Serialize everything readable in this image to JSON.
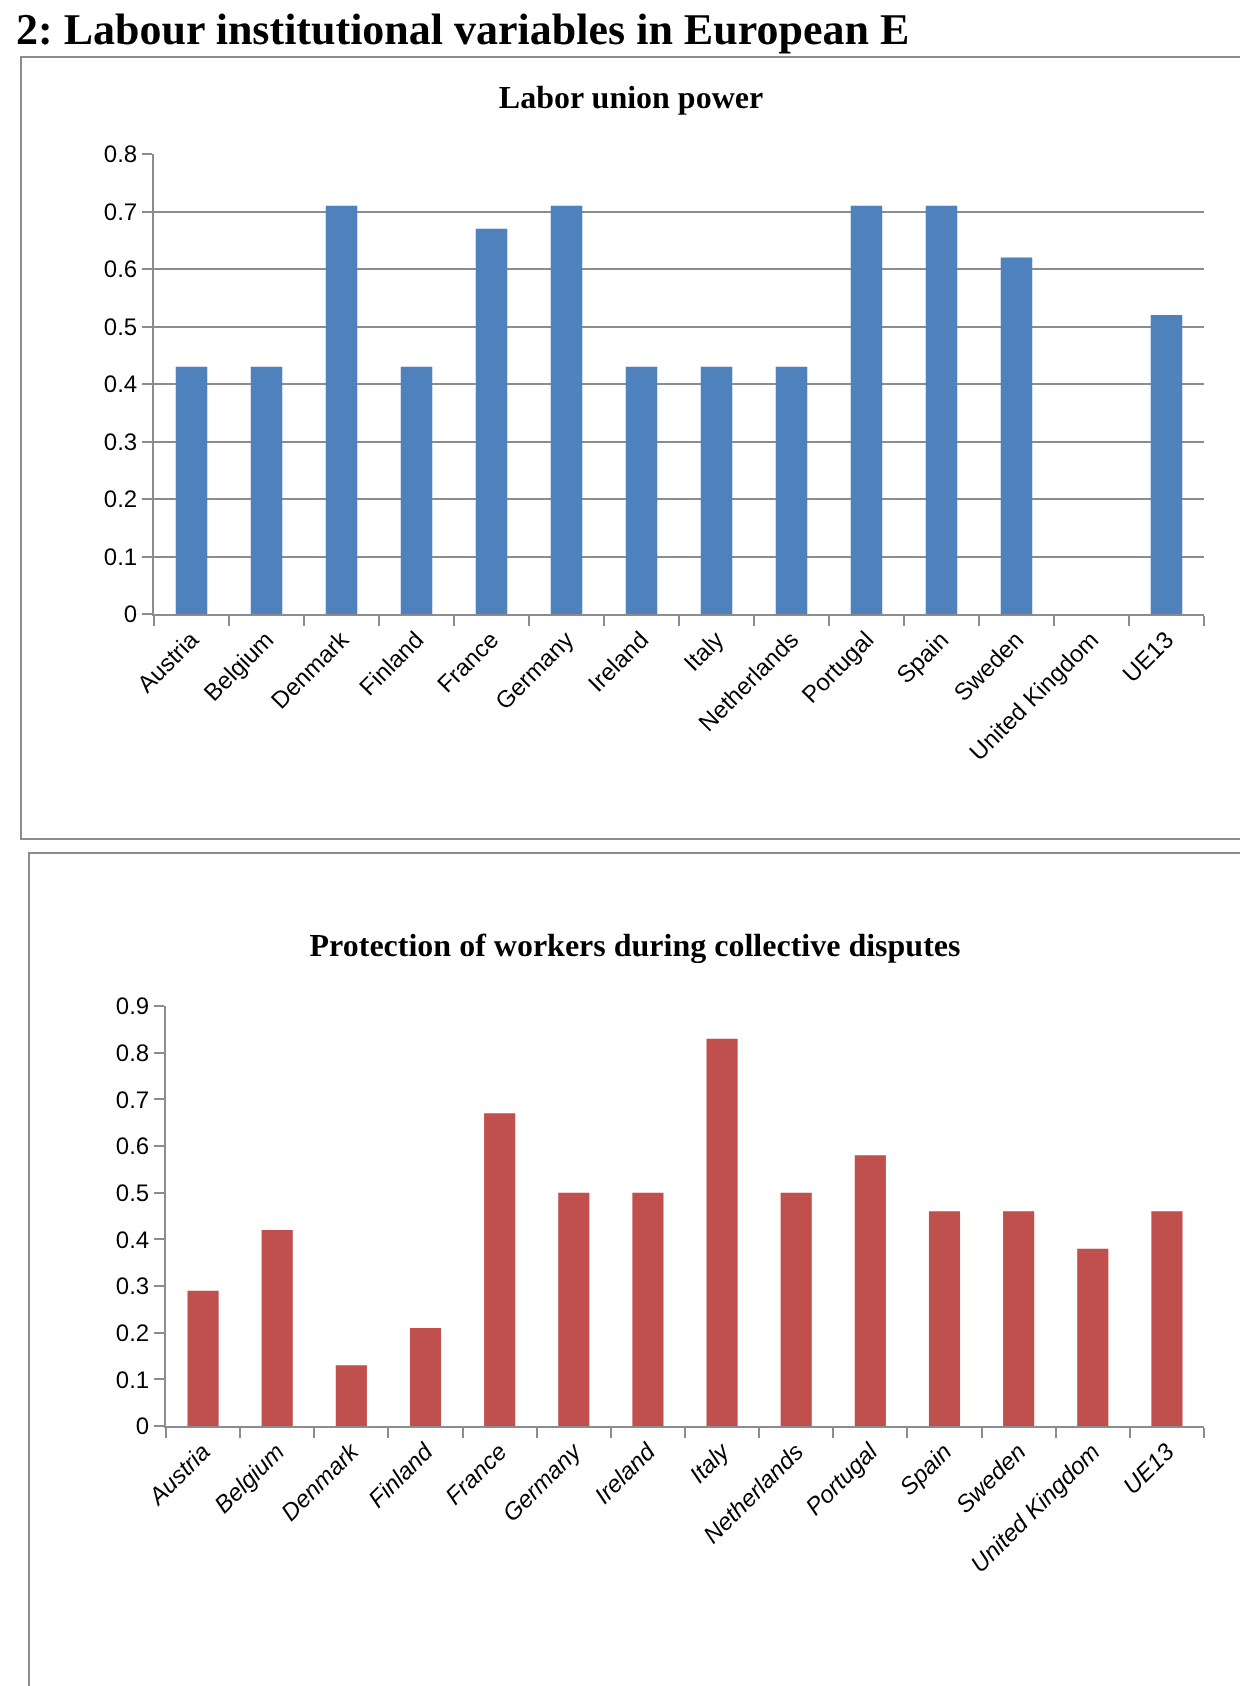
{
  "chart_data": [
    {
      "type": "bar",
      "title": "Labor union power",
      "annotations": [
        "2: Labour institutional variables in European E"
      ],
      "categories": [
        "Austria",
        "Belgium",
        "Denmark",
        "Finland",
        "France",
        "Germany",
        "Ireland",
        "Italy",
        "Netherlands",
        "Portugal",
        "Spain",
        "Sweden",
        "United Kingdom",
        "UE13"
      ],
      "values": [
        0.43,
        0.43,
        0.71,
        0.43,
        0.67,
        0.71,
        0.43,
        0.43,
        0.43,
        0.71,
        0.71,
        0.62,
        0,
        0.52
      ],
      "color": "#4f81bd",
      "ylim": [
        0,
        0.8
      ],
      "yticks": [
        0,
        0.1,
        0.2,
        0.3,
        0.4,
        0.5,
        0.6,
        0.7,
        0.8
      ],
      "grid": "y"
    },
    {
      "type": "bar",
      "title": "Protection of workers during collective disputes",
      "categories": [
        "Austria",
        "Belgium",
        "Denmark",
        "Finland",
        "France",
        "Germany",
        "Ireland",
        "Italy",
        "Netherlands",
        "Portugal",
        "Spain",
        "Sweden",
        "United Kingdom",
        "UE13"
      ],
      "values": [
        0.29,
        0.42,
        0.13,
        0.21,
        0.67,
        0.5,
        0.5,
        0.83,
        0.5,
        0.58,
        0.46,
        0.46,
        0.38,
        0.46
      ],
      "color": "#c0504d",
      "ylim": [
        0,
        0.9
      ],
      "yticks": [
        0,
        0.1,
        0.2,
        0.3,
        0.4,
        0.5,
        0.6,
        0.7,
        0.8,
        0.9
      ]
    }
  ]
}
